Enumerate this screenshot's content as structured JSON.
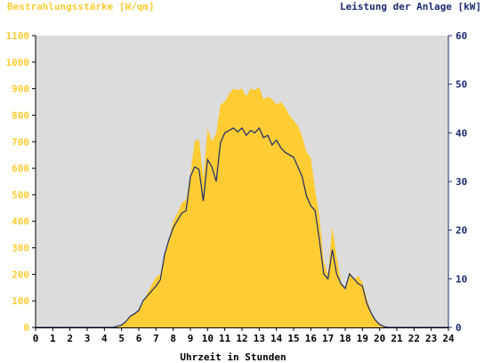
{
  "chart_data": {
    "type": "area",
    "left_axis_label": "Bestrahlungsstärke [W/qm]",
    "right_axis_label": "Leistung der Anlage [kW]",
    "xlabel": "Uhrzeit in Stunden",
    "xlim": [
      0,
      24
    ],
    "ylim_left": [
      0,
      1100
    ],
    "ylim_right": [
      0,
      60
    ],
    "x_ticks": [
      0,
      1,
      2,
      3,
      4,
      5,
      6,
      7,
      8,
      9,
      10,
      11,
      12,
      13,
      14,
      15,
      16,
      17,
      18,
      19,
      20,
      21,
      22,
      23,
      24
    ],
    "y_left_ticks": [
      0,
      100,
      200,
      300,
      400,
      500,
      600,
      700,
      800,
      900,
      1000,
      1100
    ],
    "y_right_ticks": [
      0,
      10,
      20,
      30,
      40,
      50,
      60
    ],
    "grid": false,
    "colors": {
      "irradiance": "#ffcc33",
      "power": "#1a2a6e",
      "plot_background": "#dcdcdc",
      "left_axis": "#ffcc33",
      "right_axis": "#1a2a6e"
    },
    "series": [
      {
        "name": "Bestrahlungsstärke [W/qm]",
        "axis": "left",
        "style": "area",
        "x": [
          0,
          4.5,
          5,
          5.25,
          5.5,
          5.75,
          6,
          6.25,
          6.5,
          6.75,
          7,
          7.25,
          7.5,
          7.75,
          8,
          8.25,
          8.5,
          8.75,
          9,
          9.25,
          9.5,
          9.75,
          10,
          10.25,
          10.5,
          10.75,
          11,
          11.25,
          11.5,
          11.75,
          12,
          12.25,
          12.5,
          12.75,
          13,
          13.25,
          13.5,
          13.75,
          14,
          14.25,
          14.5,
          14.75,
          15,
          15.25,
          15.5,
          15.75,
          16,
          16.25,
          16.5,
          16.75,
          17,
          17.25,
          17.5,
          17.75,
          18,
          18.25,
          18.5,
          18.75,
          19,
          19.25,
          19.5,
          19.75,
          20,
          20.25,
          20.5,
          21,
          24
        ],
        "values": [
          0,
          0,
          10,
          25,
          45,
          55,
          65,
          95,
          130,
          160,
          190,
          200,
          280,
          330,
          400,
          430,
          470,
          480,
          580,
          700,
          710,
          560,
          750,
          700,
          730,
          840,
          850,
          880,
          900,
          895,
          900,
          870,
          900,
          895,
          905,
          860,
          870,
          860,
          840,
          850,
          830,
          800,
          780,
          760,
          720,
          660,
          640,
          520,
          420,
          250,
          200,
          380,
          270,
          170,
          150,
          210,
          180,
          195,
          170,
          110,
          60,
          30,
          15,
          5,
          0,
          0,
          0
        ]
      },
      {
        "name": "Leistung der Anlage [kW]",
        "axis": "right",
        "style": "line",
        "x": [
          0,
          4.5,
          5,
          5.25,
          5.5,
          5.75,
          6,
          6.25,
          6.5,
          6.75,
          7,
          7.25,
          7.5,
          7.75,
          8,
          8.25,
          8.5,
          8.75,
          9,
          9.25,
          9.5,
          9.75,
          10,
          10.25,
          10.5,
          10.75,
          11,
          11.25,
          11.5,
          11.75,
          12,
          12.25,
          12.5,
          12.75,
          13,
          13.25,
          13.5,
          13.75,
          14,
          14.25,
          14.5,
          14.75,
          15,
          15.25,
          15.5,
          15.75,
          16,
          16.25,
          16.5,
          16.75,
          17,
          17.25,
          17.5,
          17.75,
          18,
          18.25,
          18.5,
          18.75,
          19,
          19.25,
          19.5,
          19.75,
          20,
          20.25,
          20.5,
          21,
          24
        ],
        "values": [
          0,
          0,
          0.5,
          1.2,
          2.3,
          2.8,
          3.5,
          5.5,
          6.5,
          7.5,
          8.5,
          9.8,
          15,
          18,
          20.5,
          22,
          23.5,
          24,
          31,
          33,
          32.5,
          26,
          34.5,
          33,
          30,
          38,
          40,
          40.5,
          41,
          40.2,
          41,
          39.5,
          40.5,
          40,
          41,
          39,
          39.5,
          37.5,
          38.5,
          37,
          36,
          35.5,
          35,
          33,
          31,
          27,
          25,
          24,
          18,
          11,
          10,
          16,
          11,
          9,
          8,
          11,
          10,
          9,
          8.5,
          5,
          3,
          1.5,
          0.6,
          0.2,
          0,
          0,
          0
        ]
      }
    ]
  }
}
